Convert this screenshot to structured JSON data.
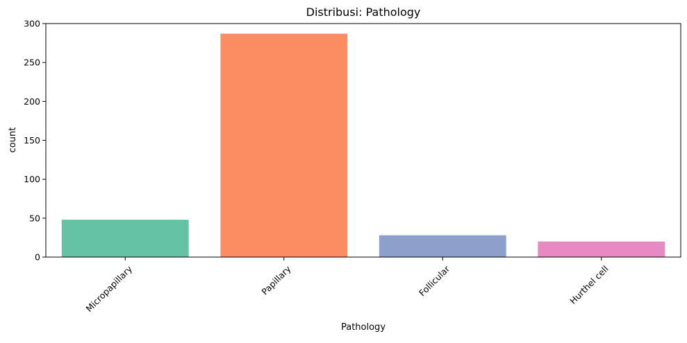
{
  "chart_data": {
    "type": "bar",
    "title": "Distribusi: Pathology",
    "xlabel": "Pathology",
    "ylabel": "count",
    "categories": [
      "Micropapillary",
      "Papillary",
      "Follicular",
      "Hurthel cell"
    ],
    "values": [
      48,
      287,
      28,
      20
    ],
    "colors": [
      "#66c2a5",
      "#fc8d62",
      "#8da0cb",
      "#e78ac3"
    ],
    "ylim": [
      0,
      300
    ],
    "yticks": [
      0,
      50,
      100,
      150,
      200,
      250,
      300
    ],
    "ytick_labels": [
      "0",
      "50",
      "100",
      "150",
      "200",
      "250",
      "300"
    ],
    "grid": false,
    "legend": "none",
    "xtick_rotation_deg": 45
  }
}
